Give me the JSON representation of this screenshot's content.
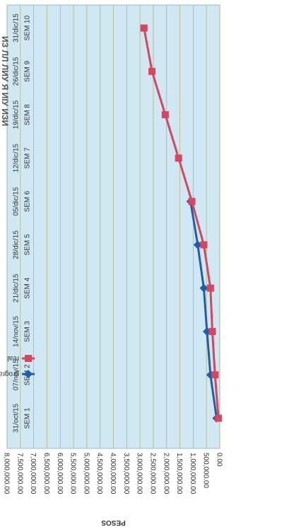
{
  "chart_data": {
    "type": "line",
    "title": "",
    "xlabel": "",
    "ylabel": "PESOS",
    "categories": [
      [
        "SEM 1",
        "31/oct/15"
      ],
      [
        "SEM 2",
        "07/nov/15"
      ],
      [
        "SEM 3",
        "14/nov/15"
      ],
      [
        "SEM 4",
        "21/dic/15"
      ],
      [
        "SEM 5",
        "28/dic/15"
      ],
      [
        "SEM 6",
        "05/dic/15"
      ],
      [
        "SEM 7",
        "12/dic/15"
      ],
      [
        "SEM 8",
        "19/dic/15"
      ],
      [
        "SEM 9",
        "26/dic/15"
      ],
      [
        "SEM 10",
        "31/dic/15"
      ]
    ],
    "series": [
      {
        "name": "programado",
        "color": "#1f5fa8",
        "marker": "diamond",
        "values": [
          120000,
          350000,
          480000,
          600000,
          830000,
          1100000,
          null,
          null,
          null,
          null
        ]
      },
      {
        "name": "real",
        "color": "#d9455f",
        "marker": "square",
        "values": [
          50000,
          180000,
          280000,
          350000,
          600000,
          1050000,
          1550000,
          2050000,
          2550000,
          2850000
        ]
      }
    ],
    "ylim": [
      0,
      8000000
    ],
    "yticks": [
      "0.00",
      "500,000.00",
      "1,000,000.00",
      "1,500,000.00",
      "2,000,000.00",
      "2,500,000.00",
      "3,000,000.00",
      "3,500,000.00",
      "4,000,000.00",
      "4,500,000.00",
      "5,000,000.00",
      "5,500,000.00",
      "6,000,000.00",
      "6,500,000.00",
      "7,000,000.00",
      "7,500,000.00",
      "8,000,000.00"
    ],
    "grid": true,
    "legend": "left",
    "plot_background": "#cfe8f3"
  },
  "title_fragment": "ИЗ ЛЛ ЛИУ Я ИІУ ИЗИ"
}
